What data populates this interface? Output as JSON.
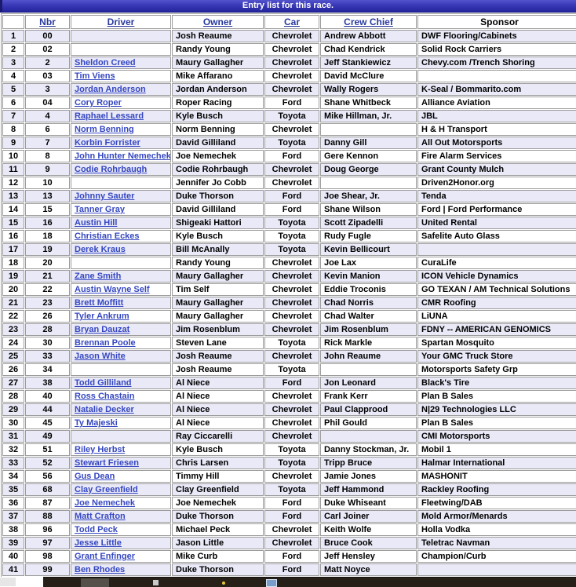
{
  "banner": {
    "title": "Entry list for this race."
  },
  "table": {
    "columns": [
      {
        "label": "",
        "link": false
      },
      {
        "label": "Nbr",
        "link": true
      },
      {
        "label": "Driver",
        "link": true
      },
      {
        "label": "Owner",
        "link": true
      },
      {
        "label": "Car",
        "link": true
      },
      {
        "label": "Crew Chief",
        "link": true
      },
      {
        "label": "Sponsor",
        "link": false
      }
    ],
    "rows": [
      {
        "pos": "1",
        "nbr": "00",
        "driver": "",
        "owner": "Josh Reaume",
        "car": "Chevrolet",
        "crew_chief": "Andrew Abbott",
        "sponsor": "DWF Flooring/Cabinets"
      },
      {
        "pos": "2",
        "nbr": "02",
        "driver": "",
        "owner": "Randy Young",
        "car": "Chevrolet",
        "crew_chief": "Chad Kendrick",
        "sponsor": "Solid Rock Carriers"
      },
      {
        "pos": "3",
        "nbr": "2",
        "driver": "Sheldon Creed",
        "owner": "Maury Gallagher",
        "car": "Chevrolet",
        "crew_chief": "Jeff Stankiewicz",
        "sponsor": "Chevy.com /Trench Shoring"
      },
      {
        "pos": "4",
        "nbr": "03",
        "driver": "Tim Viens",
        "owner": "Mike Affarano",
        "car": "Chevrolet",
        "crew_chief": "David McClure",
        "sponsor": ""
      },
      {
        "pos": "5",
        "nbr": "3",
        "driver": "Jordan Anderson",
        "owner": "Jordan Anderson",
        "car": "Chevrolet",
        "crew_chief": "Wally Rogers",
        "sponsor": "K-Seal / Bommarito.com"
      },
      {
        "pos": "6",
        "nbr": "04",
        "driver": "Cory Roper",
        "owner": "Roper Racing",
        "car": "Ford",
        "crew_chief": "Shane Whitbeck",
        "sponsor": "Alliance Aviation"
      },
      {
        "pos": "7",
        "nbr": "4",
        "driver": "Raphael Lessard",
        "owner": "Kyle Busch",
        "car": "Toyota",
        "crew_chief": "Mike Hillman, Jr.",
        "sponsor": "JBL"
      },
      {
        "pos": "8",
        "nbr": "6",
        "driver": "Norm Benning",
        "owner": "Norm Benning",
        "car": "Chevrolet",
        "crew_chief": "",
        "sponsor": "H & H Transport"
      },
      {
        "pos": "9",
        "nbr": "7",
        "driver": "Korbin Forrister",
        "owner": "David Gilliland",
        "car": "Toyota",
        "crew_chief": "Danny Gill",
        "sponsor": "All Out Motorsports"
      },
      {
        "pos": "10",
        "nbr": "8",
        "driver": "John Hunter Nemechek",
        "owner": "Joe Nemechek",
        "car": "Ford",
        "crew_chief": "Gere Kennon",
        "sponsor": "Fire Alarm Services"
      },
      {
        "pos": "11",
        "nbr": "9",
        "driver": "Codie Rohrbaugh",
        "owner": "Codie Rohrbaugh",
        "car": "Chevrolet",
        "crew_chief": "Doug George",
        "sponsor": "Grant County Mulch"
      },
      {
        "pos": "12",
        "nbr": "10",
        "driver": "",
        "owner": "Jennifer Jo Cobb",
        "car": "Chevrolet",
        "crew_chief": "",
        "sponsor": "Driven2Honor.org"
      },
      {
        "pos": "13",
        "nbr": "13",
        "driver": "Johnny Sauter",
        "owner": "Duke Thorson",
        "car": "Ford",
        "crew_chief": "Joe Shear, Jr.",
        "sponsor": "Tenda"
      },
      {
        "pos": "14",
        "nbr": "15",
        "driver": "Tanner Gray",
        "owner": "David Gilliland",
        "car": "Ford",
        "crew_chief": "Shane Wilson",
        "sponsor": "Ford | Ford Performance"
      },
      {
        "pos": "15",
        "nbr": "16",
        "driver": "Austin Hill",
        "owner": "Shigeaki Hattori",
        "car": "Toyota",
        "crew_chief": "Scott Zipadelli",
        "sponsor": "United Rental"
      },
      {
        "pos": "16",
        "nbr": "18",
        "driver": "Christian Eckes",
        "owner": "Kyle Busch",
        "car": "Toyota",
        "crew_chief": "Rudy Fugle",
        "sponsor": "Safelite Auto Glass"
      },
      {
        "pos": "17",
        "nbr": "19",
        "driver": "Derek Kraus",
        "owner": "Bill McAnally",
        "car": "Toyota",
        "crew_chief": "Kevin Bellicourt",
        "sponsor": ""
      },
      {
        "pos": "18",
        "nbr": "20",
        "driver": "",
        "owner": "Randy Young",
        "car": "Chevrolet",
        "crew_chief": "Joe Lax",
        "sponsor": "CuraLife"
      },
      {
        "pos": "19",
        "nbr": "21",
        "driver": "Zane Smith",
        "owner": "Maury Gallagher",
        "car": "Chevrolet",
        "crew_chief": "Kevin Manion",
        "sponsor": "ICON Vehicle Dynamics"
      },
      {
        "pos": "20",
        "nbr": "22",
        "driver": "Austin Wayne Self",
        "owner": "Tim Self",
        "car": "Chevrolet",
        "crew_chief": "Eddie Troconis",
        "sponsor": "GO TEXAN / AM Technical Solutions"
      },
      {
        "pos": "21",
        "nbr": "23",
        "driver": "Brett Moffitt",
        "owner": "Maury Gallagher",
        "car": "Chevrolet",
        "crew_chief": "Chad Norris",
        "sponsor": "CMR Roofing"
      },
      {
        "pos": "22",
        "nbr": "26",
        "driver": "Tyler Ankrum",
        "owner": "Maury Gallagher",
        "car": "Chevrolet",
        "crew_chief": "Chad Walter",
        "sponsor": "LiUNA"
      },
      {
        "pos": "23",
        "nbr": "28",
        "driver": "Bryan Dauzat",
        "owner": "Jim Rosenblum",
        "car": "Chevrolet",
        "crew_chief": "Jim Rosenblum",
        "sponsor": "FDNY -- AMERICAN GENOMICS"
      },
      {
        "pos": "24",
        "nbr": "30",
        "driver": "Brennan Poole",
        "owner": "Steven Lane",
        "car": "Toyota",
        "crew_chief": "Rick Markle",
        "sponsor": "Spartan Mosquito"
      },
      {
        "pos": "25",
        "nbr": "33",
        "driver": "Jason White",
        "owner": "Josh Reaume",
        "car": "Chevrolet",
        "crew_chief": "John Reaume",
        "sponsor": "Your GMC Truck Store"
      },
      {
        "pos": "26",
        "nbr": "34",
        "driver": "",
        "owner": "Josh Reaume",
        "car": "Toyota",
        "crew_chief": "",
        "sponsor": "Motorsports Safety Grp"
      },
      {
        "pos": "27",
        "nbr": "38",
        "driver": "Todd Gilliland",
        "owner": "Al Niece",
        "car": "Ford",
        "crew_chief": "Jon Leonard",
        "sponsor": "Black's Tire"
      },
      {
        "pos": "28",
        "nbr": "40",
        "driver": "Ross Chastain",
        "owner": "Al Niece",
        "car": "Chevrolet",
        "crew_chief": "Frank Kerr",
        "sponsor": "Plan B Sales"
      },
      {
        "pos": "29",
        "nbr": "44",
        "driver": "Natalie Decker",
        "owner": "Al Niece",
        "car": "Chevrolet",
        "crew_chief": "Paul Clapprood",
        "sponsor": "N|29 Technologies LLC"
      },
      {
        "pos": "30",
        "nbr": "45",
        "driver": "Ty Majeski",
        "owner": "Al Niece",
        "car": "Chevrolet",
        "crew_chief": "Phil Gould",
        "sponsor": "Plan B Sales"
      },
      {
        "pos": "31",
        "nbr": "49",
        "driver": "",
        "owner": "Ray Ciccarelli",
        "car": "Chevrolet",
        "crew_chief": "",
        "sponsor": "CMI Motorsports"
      },
      {
        "pos": "32",
        "nbr": "51",
        "driver": "Riley Herbst",
        "owner": "Kyle Busch",
        "car": "Toyota",
        "crew_chief": "Danny Stockman, Jr.",
        "sponsor": "Mobil 1"
      },
      {
        "pos": "33",
        "nbr": "52",
        "driver": "Stewart Friesen",
        "owner": "Chris Larsen",
        "car": "Toyota",
        "crew_chief": "Tripp Bruce",
        "sponsor": "Halmar International"
      },
      {
        "pos": "34",
        "nbr": "56",
        "driver": "Gus Dean",
        "owner": "Timmy Hill",
        "car": "Chevrolet",
        "crew_chief": "Jamie Jones",
        "sponsor": "MASHONIT"
      },
      {
        "pos": "35",
        "nbr": "68",
        "driver": "Clay Greenfield",
        "owner": "Clay Greenfield",
        "car": "Toyota",
        "crew_chief": "Jeff Hammond",
        "sponsor": "Rackley Roofing"
      },
      {
        "pos": "36",
        "nbr": "87",
        "driver": "Joe Nemechek",
        "owner": "Joe Nemechek",
        "car": "Ford",
        "crew_chief": "Duke Whiseant",
        "sponsor": "Fleetwing/DAB"
      },
      {
        "pos": "37",
        "nbr": "88",
        "driver": "Matt Crafton",
        "owner": "Duke Thorson",
        "car": "Ford",
        "crew_chief": "Carl Joiner",
        "sponsor": "Mold Armor/Menards"
      },
      {
        "pos": "38",
        "nbr": "96",
        "driver": "Todd Peck",
        "owner": "Michael Peck",
        "car": "Chevrolet",
        "crew_chief": "Keith Wolfe",
        "sponsor": "Holla Vodka"
      },
      {
        "pos": "39",
        "nbr": "97",
        "driver": "Jesse Little",
        "owner": "Jason Little",
        "car": "Chevrolet",
        "crew_chief": "Bruce Cook",
        "sponsor": "Teletrac Navman"
      },
      {
        "pos": "40",
        "nbr": "98",
        "driver": "Grant Enfinger",
        "owner": "Mike Curb",
        "car": "Ford",
        "crew_chief": "Jeff Hensley",
        "sponsor": "Champion/Curb"
      },
      {
        "pos": "41",
        "nbr": "99",
        "driver": "Ben Rhodes",
        "owner": "Duke Thorson",
        "car": "Ford",
        "crew_chief": "Matt Noyce",
        "sponsor": ""
      }
    ]
  },
  "colors": {
    "banner_blue": "#3434b2",
    "alt_row": "#e9e9f8",
    "header_link": "#283a9e",
    "driver_link": "#3547c0",
    "border_gray": "#9c9c9c",
    "taskbar_dark": "#262019"
  },
  "taskbar": {
    "icons": [
      "launcher-icon",
      "alert-dot-icon",
      "window-icon"
    ]
  }
}
